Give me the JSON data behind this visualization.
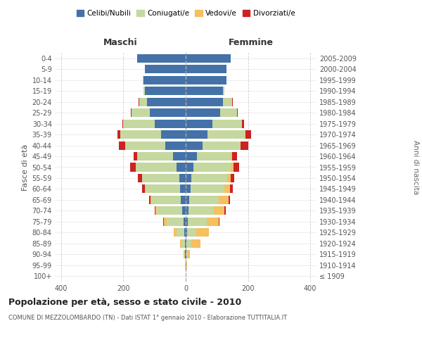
{
  "age_groups": [
    "100+",
    "95-99",
    "90-94",
    "85-89",
    "80-84",
    "75-79",
    "70-74",
    "65-69",
    "60-64",
    "55-59",
    "50-54",
    "45-49",
    "40-44",
    "35-39",
    "30-34",
    "25-29",
    "20-24",
    "15-19",
    "10-14",
    "5-9",
    "0-4"
  ],
  "birth_years": [
    "≤ 1909",
    "1910-1914",
    "1915-1919",
    "1920-1924",
    "1925-1929",
    "1930-1934",
    "1935-1939",
    "1940-1944",
    "1945-1949",
    "1950-1954",
    "1955-1959",
    "1960-1964",
    "1965-1969",
    "1970-1974",
    "1975-1979",
    "1980-1984",
    "1985-1989",
    "1990-1994",
    "1995-1999",
    "2000-2004",
    "2005-2009"
  ],
  "maschi": {
    "celibi": [
      1,
      1,
      2,
      3,
      4,
      7,
      12,
      15,
      18,
      20,
      30,
      40,
      65,
      80,
      100,
      115,
      125,
      130,
      135,
      130,
      155
    ],
    "coniugati": [
      0,
      1,
      3,
      10,
      25,
      55,
      80,
      95,
      110,
      120,
      130,
      115,
      130,
      130,
      100,
      60,
      25,
      5,
      2,
      0,
      0
    ],
    "vedovi": [
      0,
      0,
      2,
      5,
      10,
      8,
      5,
      3,
      2,
      1,
      1,
      0,
      0,
      0,
      0,
      0,
      0,
      0,
      0,
      0,
      0
    ],
    "divorziati": [
      0,
      0,
      0,
      0,
      0,
      2,
      3,
      5,
      10,
      12,
      18,
      12,
      20,
      8,
      3,
      2,
      1,
      0,
      0,
      0,
      0
    ]
  },
  "femmine": {
    "nubili": [
      1,
      1,
      2,
      3,
      4,
      7,
      10,
      12,
      15,
      18,
      25,
      35,
      55,
      70,
      85,
      110,
      120,
      120,
      130,
      130,
      145
    ],
    "coniugate": [
      0,
      1,
      4,
      15,
      30,
      60,
      80,
      95,
      110,
      115,
      120,
      110,
      120,
      120,
      95,
      55,
      30,
      5,
      2,
      0,
      0
    ],
    "vedove": [
      0,
      2,
      8,
      30,
      40,
      40,
      35,
      30,
      18,
      12,
      8,
      5,
      2,
      1,
      0,
      0,
      0,
      0,
      0,
      0,
      0
    ],
    "divorziate": [
      0,
      0,
      0,
      0,
      0,
      2,
      3,
      5,
      8,
      10,
      18,
      15,
      25,
      20,
      8,
      2,
      1,
      0,
      0,
      0,
      0
    ]
  },
  "colors": {
    "celibi_nubili": "#4472a8",
    "coniugati_e": "#c5d8a0",
    "vedovi_e": "#f5c060",
    "divorziati_e": "#cc2222"
  },
  "xlim": 420,
  "title": "Popolazione per età, sesso e stato civile - 2010",
  "subtitle": "COMUNE DI MEZZOLOMBARDO (TN) - Dati ISTAT 1° gennaio 2010 - Elaborazione TUTTITALIA.IT",
  "xlabel_left": "Maschi",
  "xlabel_right": "Femmine",
  "ylabel_left": "Fasce di età",
  "ylabel_right": "Anni di nascita",
  "legend_labels": [
    "Celibi/Nubili",
    "Coniugati/e",
    "Vedovi/e",
    "Divorziati/e"
  ],
  "background_color": "#ffffff",
  "grid_color": "#cccccc"
}
